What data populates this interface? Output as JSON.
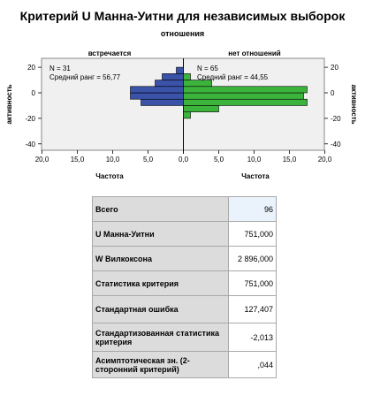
{
  "title": "Критерий U Манна-Уитни для независимых выборок",
  "subtitle": "отношения",
  "chart_data": {
    "type": "bar",
    "orientation": "horizontal",
    "panels": [
      {
        "name": "встречается",
        "direction": "left",
        "color": "#3a52a8",
        "stats": [
          "N = 31",
          "Средний ранг = 56,77"
        ],
        "bins": [
          {
            "y_from": -10,
            "y_to": -5,
            "count": 6
          },
          {
            "y_from": -5,
            "y_to": 0,
            "count": 7.5
          },
          {
            "y_from": 0,
            "y_to": 5,
            "count": 7.5
          },
          {
            "y_from": 5,
            "y_to": 10,
            "count": 4
          },
          {
            "y_from": 10,
            "y_to": 15,
            "count": 3
          },
          {
            "y_from": 15,
            "y_to": 20,
            "count": 1
          }
        ]
      },
      {
        "name": "нет отношений",
        "direction": "right",
        "color": "#3cb43c",
        "stats": [
          "N = 65",
          "Средний ранг = 44,55"
        ],
        "bins": [
          {
            "y_from": -20,
            "y_to": -15,
            "count": 1
          },
          {
            "y_from": -15,
            "y_to": -10,
            "count": 5
          },
          {
            "y_from": -10,
            "y_to": -5,
            "count": 17.5
          },
          {
            "y_from": -5,
            "y_to": 0,
            "count": 17
          },
          {
            "y_from": 0,
            "y_to": 5,
            "count": 17.5
          },
          {
            "y_from": 5,
            "y_to": 10,
            "count": 4
          },
          {
            "y_from": 10,
            "y_to": 15,
            "count": 1
          }
        ]
      }
    ],
    "y_label": "активность",
    "y_ticks": [
      "20",
      "0",
      "-20",
      "-40"
    ],
    "y_tick_values": [
      20,
      0,
      -20,
      -40
    ],
    "y_range": [
      -45,
      27
    ],
    "x_label": "Частота",
    "x_ticks_left": [
      "20,0",
      "15,0",
      "10,0",
      "5,0",
      "0,0"
    ],
    "x_tick_values_left": [
      20,
      15,
      10,
      5,
      0
    ],
    "x_ticks_right": [
      "0,0",
      "5,0",
      "10,0",
      "15,0",
      "20,0"
    ],
    "x_tick_values_right": [
      0,
      5,
      10,
      15,
      20
    ],
    "x_range": [
      0,
      20
    ]
  },
  "table": [
    {
      "label": "Всего",
      "value": "96"
    },
    {
      "label": "U Манна-Уитни",
      "value": "751,000"
    },
    {
      "label": "W Вилкоксона",
      "value": "2 896,000"
    },
    {
      "label": "Статистика критерия",
      "value": "751,000"
    },
    {
      "label": "Стандартная ошибка",
      "value": "127,407"
    },
    {
      "label": "Стандартизованная статистика критерия",
      "value": "-2,013"
    },
    {
      "label": "Асимптотическая зн. (2-сторонний критерий)",
      "value": ",044"
    }
  ]
}
